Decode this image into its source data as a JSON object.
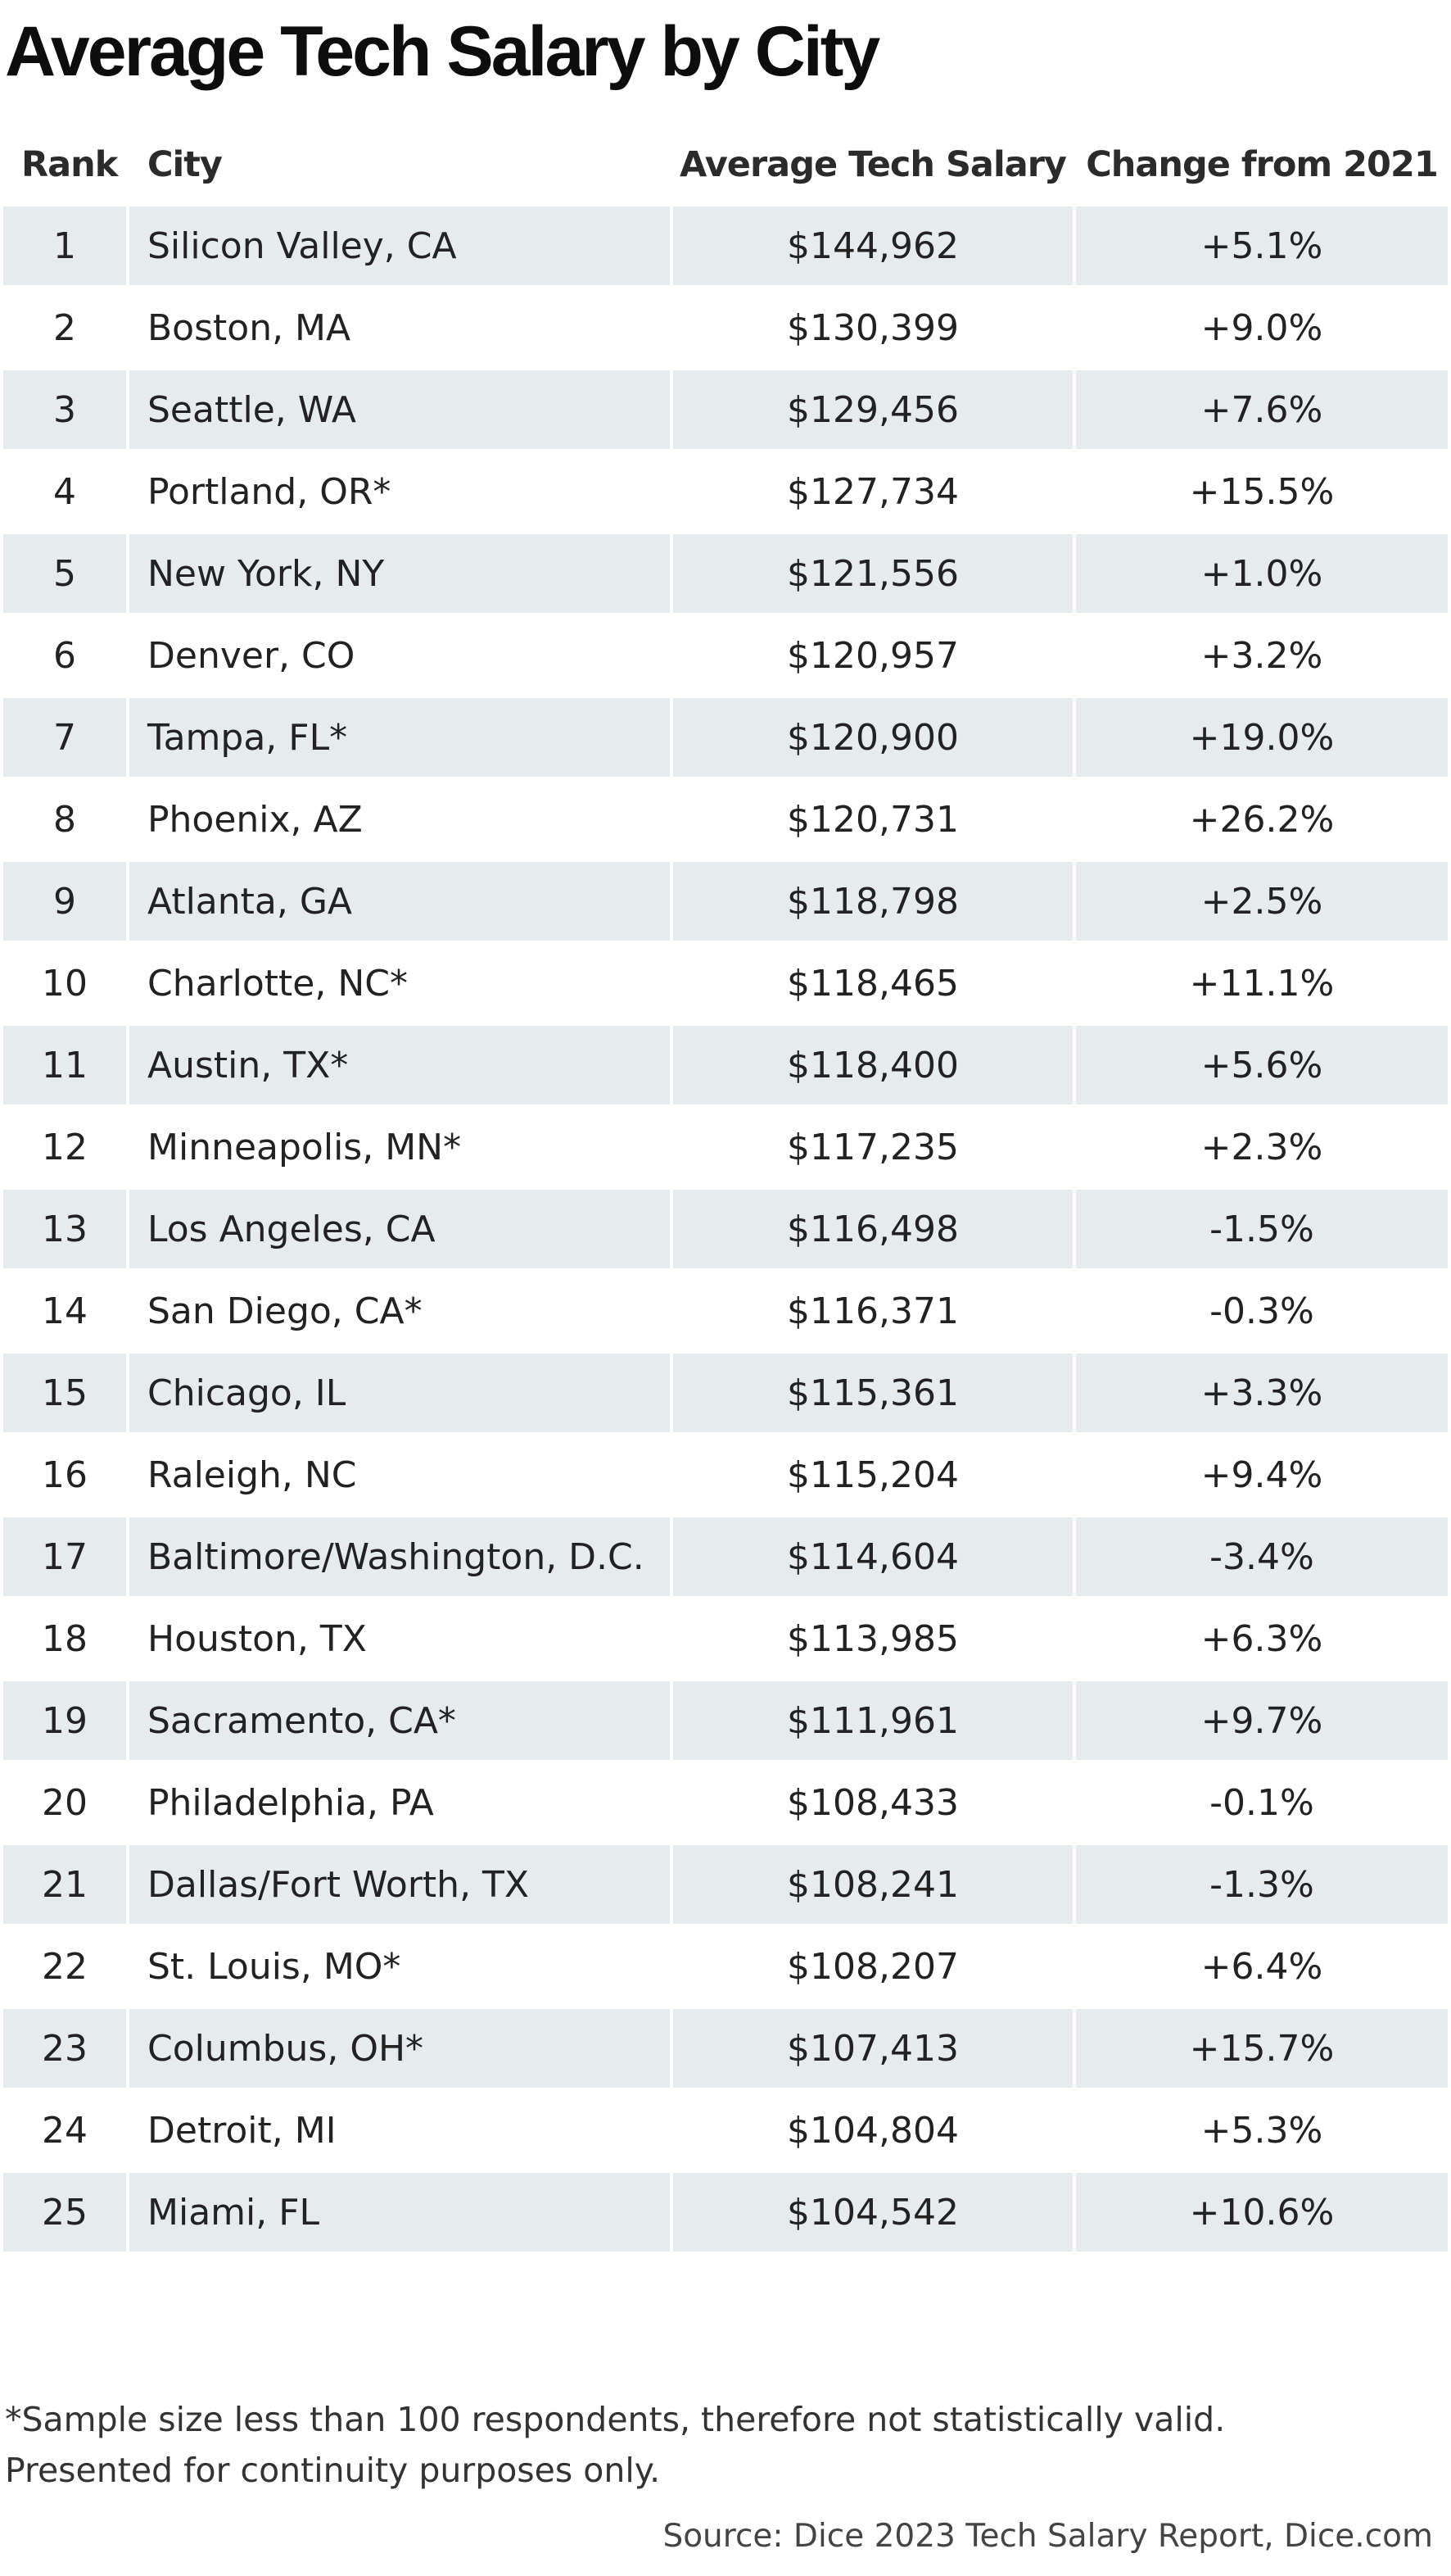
{
  "chart_data": {
    "type": "table",
    "title": "Average Tech Salary by City",
    "columns": [
      "Rank",
      "City",
      "Average Tech Salary",
      "Change from 2021"
    ],
    "rows": [
      {
        "rank": "1",
        "city": "Silicon Valley, CA",
        "salary": "$144,962",
        "change": "+5.1%"
      },
      {
        "rank": "2",
        "city": "Boston, MA",
        "salary": "$130,399",
        "change": "+9.0%"
      },
      {
        "rank": "3",
        "city": "Seattle, WA",
        "salary": "$129,456",
        "change": "+7.6%"
      },
      {
        "rank": "4",
        "city": "Portland, OR*",
        "salary": "$127,734",
        "change": "+15.5%"
      },
      {
        "rank": "5",
        "city": "New York, NY",
        "salary": "$121,556",
        "change": "+1.0%"
      },
      {
        "rank": "6",
        "city": "Denver, CO",
        "salary": "$120,957",
        "change": "+3.2%"
      },
      {
        "rank": "7",
        "city": "Tampa, FL*",
        "salary": "$120,900",
        "change": "+19.0%"
      },
      {
        "rank": "8",
        "city": "Phoenix, AZ",
        "salary": "$120,731",
        "change": "+26.2%"
      },
      {
        "rank": "9",
        "city": "Atlanta, GA",
        "salary": "$118,798",
        "change": "+2.5%"
      },
      {
        "rank": "10",
        "city": "Charlotte, NC*",
        "salary": "$118,465",
        "change": "+11.1%"
      },
      {
        "rank": "11",
        "city": "Austin, TX*",
        "salary": "$118,400",
        "change": "+5.6%"
      },
      {
        "rank": "12",
        "city": "Minneapolis, MN*",
        "salary": "$117,235",
        "change": "+2.3%"
      },
      {
        "rank": "13",
        "city": "Los Angeles, CA",
        "salary": "$116,498",
        "change": "-1.5%"
      },
      {
        "rank": "14",
        "city": "San Diego, CA*",
        "salary": "$116,371",
        "change": "-0.3%"
      },
      {
        "rank": "15",
        "city": "Chicago, IL",
        "salary": "$115,361",
        "change": "+3.3%"
      },
      {
        "rank": "16",
        "city": "Raleigh, NC",
        "salary": "$115,204",
        "change": "+9.4%"
      },
      {
        "rank": "17",
        "city": "Baltimore/Washington, D.C.",
        "salary": "$114,604",
        "change": "-3.4%"
      },
      {
        "rank": "18",
        "city": "Houston, TX",
        "salary": "$113,985",
        "change": "+6.3%"
      },
      {
        "rank": "19",
        "city": "Sacramento, CA*",
        "salary": "$111,961",
        "change": "+9.7%"
      },
      {
        "rank": "20",
        "city": "Philadelphia, PA",
        "salary": "$108,433",
        "change": "-0.1%"
      },
      {
        "rank": "21",
        "city": "Dallas/Fort Worth, TX",
        "salary": "$108,241",
        "change": "-1.3%"
      },
      {
        "rank": "22",
        "city": "St. Louis, MO*",
        "salary": "$108,207",
        "change": "+6.4%"
      },
      {
        "rank": "23",
        "city": "Columbus, OH*",
        "salary": "$107,413",
        "change": "+15.7%"
      },
      {
        "rank": "24",
        "city": "Detroit, MI",
        "salary": "$104,804",
        "change": "+5.3%"
      },
      {
        "rank": "25",
        "city": "Miami, FL",
        "salary": "$104,542",
        "change": "+10.6%"
      }
    ],
    "stripe_color": "#e6ecee",
    "footnote": [
      "*Sample size less than 100 respondents, therefore not statistically valid.",
      "Presented for continuity purposes only."
    ],
    "source": "Source: Dice 2023 Tech Salary Report, Dice.com"
  }
}
